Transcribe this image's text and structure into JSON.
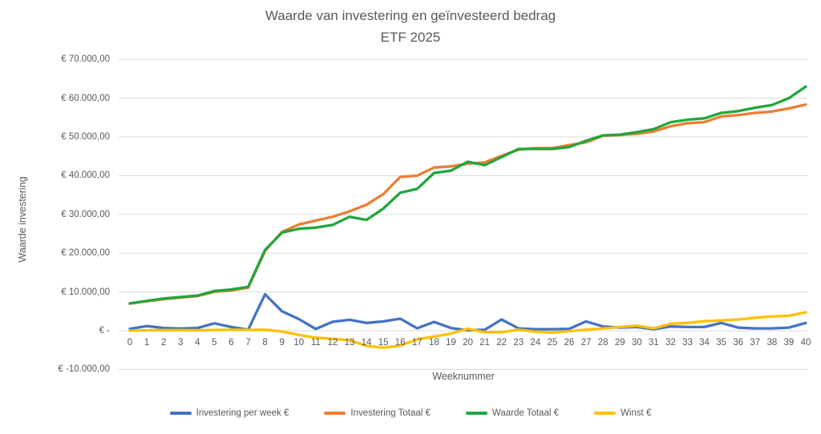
{
  "chart_data": {
    "type": "line",
    "title": "Waarde van investering en geïnvesteerd bedrag",
    "subtitle": "ETF 2025",
    "xlabel": "Weeknummer",
    "ylabel": "Waarde investering",
    "x": [
      0,
      1,
      2,
      3,
      4,
      5,
      6,
      7,
      8,
      9,
      10,
      11,
      12,
      13,
      14,
      15,
      16,
      17,
      18,
      19,
      20,
      21,
      22,
      23,
      24,
      25,
      26,
      27,
      28,
      29,
      30,
      31,
      32,
      33,
      34,
      35,
      36,
      37,
      38,
      39,
      40
    ],
    "series": [
      {
        "name": "Investering per week €",
        "color": "#4472C4",
        "values": [
          500,
          1200,
          700,
          550,
          700,
          1900,
          950,
          250,
          9400,
          5000,
          3000,
          450,
          2300,
          2800,
          2000,
          2400,
          3100,
          650,
          2250,
          700,
          100,
          250,
          2900,
          600,
          400,
          400,
          500,
          2400,
          1100,
          800,
          950,
          400,
          1100,
          950,
          950,
          2000,
          800,
          600,
          600,
          800,
          2000
        ]
      },
      {
        "name": "Investering Totaal €",
        "color": "#ED7D31",
        "values": [
          7000,
          7600,
          8150,
          8550,
          8950,
          10050,
          10400,
          11100,
          20600,
          25500,
          27400,
          28400,
          29400,
          30800,
          32500,
          35250,
          39700,
          40000,
          42100,
          42400,
          43100,
          43400,
          45150,
          46700,
          47100,
          47100,
          47900,
          48600,
          50300,
          50500,
          50800,
          51400,
          52750,
          53550,
          53800,
          55300,
          55650,
          56200,
          56550,
          57350,
          58350
        ]
      },
      {
        "name": "Waarde Totaal €",
        "color": "#21A63C",
        "values": [
          7050,
          7700,
          8300,
          8700,
          9050,
          10250,
          10650,
          11300,
          20850,
          25300,
          26300,
          26600,
          27300,
          29400,
          28600,
          31500,
          35600,
          36600,
          40700,
          41300,
          43600,
          42700,
          44800,
          46900,
          46900,
          46900,
          47400,
          49000,
          50400,
          50600,
          51250,
          52000,
          53800,
          54450,
          54800,
          56200,
          56650,
          57550,
          58250,
          60000,
          63000
        ]
      },
      {
        "name": "Winst €",
        "color": "#FFC000",
        "values": [
          0,
          100,
          150,
          150,
          100,
          200,
          250,
          200,
          250,
          -200,
          -1100,
          -1800,
          -2100,
          -2450,
          -3900,
          -4400,
          -3850,
          -2250,
          -1500,
          -750,
          500,
          -400,
          -400,
          250,
          -250,
          -500,
          -100,
          250,
          600,
          950,
          1300,
          600,
          1800,
          2000,
          2450,
          2650,
          2900,
          3350,
          3700,
          3850,
          4750
        ]
      }
    ],
    "ylim": [
      -10000,
      70000
    ],
    "ytick_step": 10000,
    "ytick_labels": [
      "€ 70.000,00",
      "€ 60.000,00",
      "€ 50.000,00",
      "€ 40.000,00",
      "€ 30.000,00",
      "€ 20.000,00",
      "€ 10.000,00",
      "€ -",
      "€ -10.000,00"
    ],
    "grid": true,
    "gridline_color": "#D9D9D9",
    "legend_position": "bottom"
  }
}
